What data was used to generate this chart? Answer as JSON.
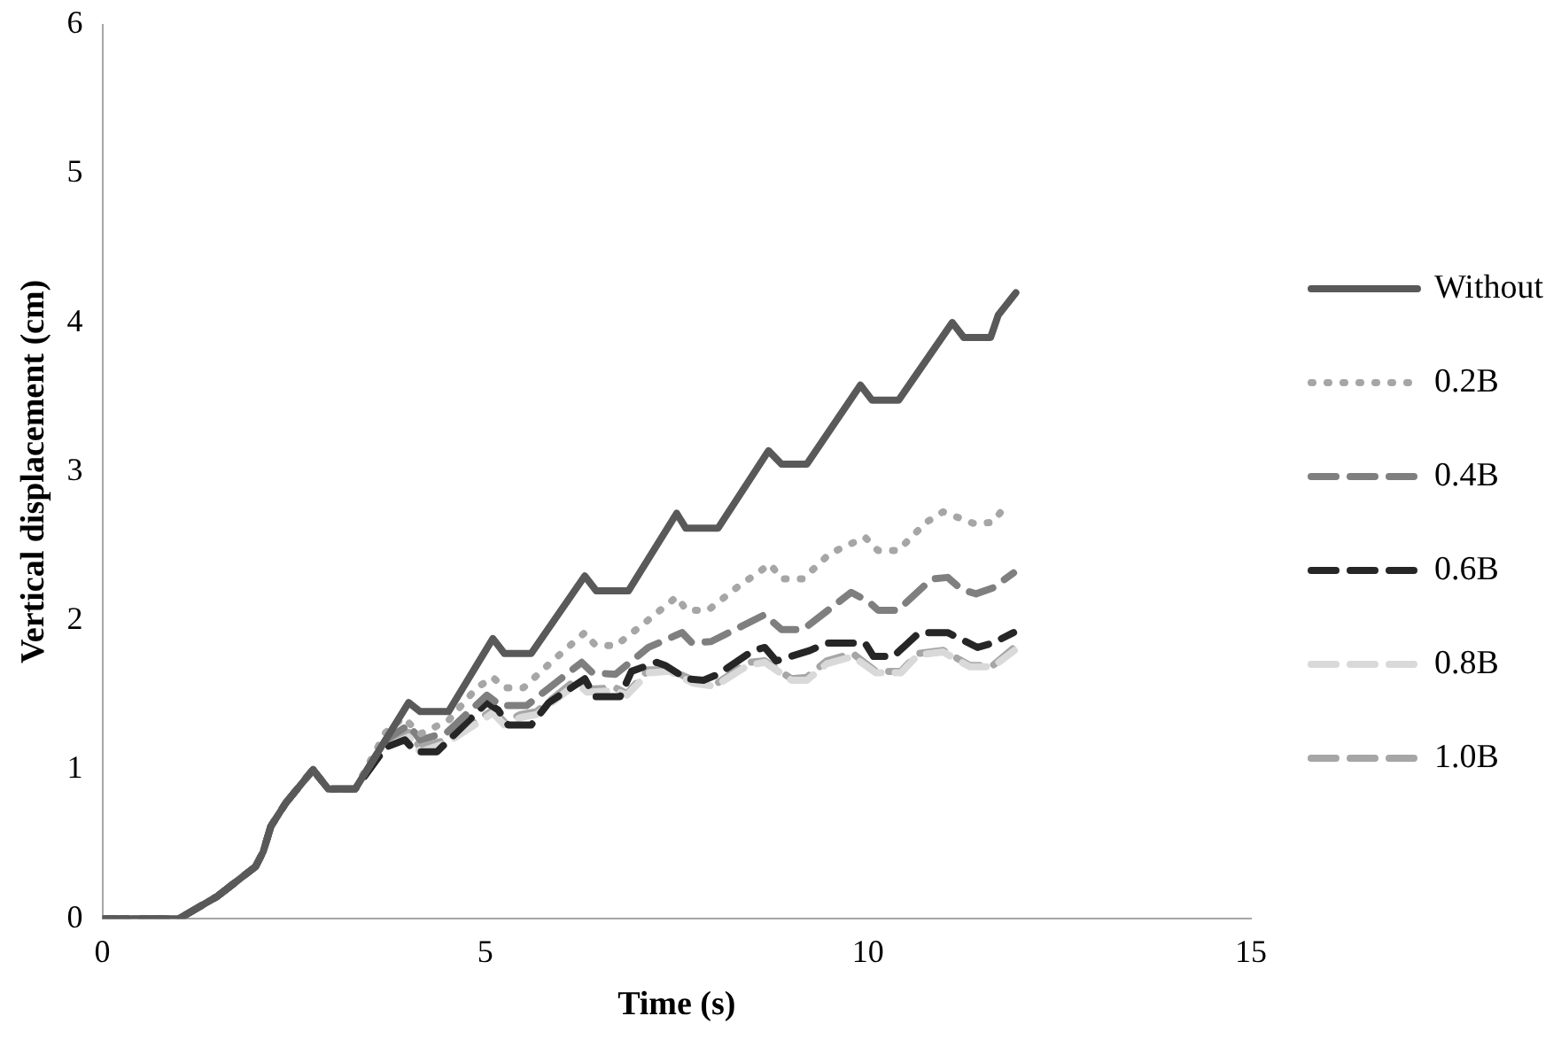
{
  "chart_data": {
    "type": "line",
    "xlabel": "Time (s)",
    "ylabel": "Vertical displacement (cm)",
    "xlim": [
      0,
      15
    ],
    "xticks": [
      0,
      5,
      10,
      15
    ],
    "ylim": [
      0,
      6
    ],
    "yticks": [
      0,
      1,
      2,
      3,
      4,
      5,
      6
    ],
    "grid": false,
    "legend": "right",
    "marker": "none",
    "series": [
      {
        "name": "Without",
        "color": "#595959",
        "line_style": "solid",
        "x": [
          0,
          1,
          1.5,
          2,
          2.1,
          2.2,
          2.4,
          2.75,
          2.95,
          3.3,
          4.0,
          4.15,
          4.52,
          5.1,
          5.25,
          5.6,
          6.3,
          6.45,
          6.87,
          7.5,
          7.62,
          8.04,
          8.7,
          8.87,
          9.2,
          9.9,
          10.05,
          10.4,
          11.1,
          11.25,
          11.6,
          11.7,
          11.93
        ],
        "values": [
          0,
          0,
          0.15,
          0.35,
          0.45,
          0.62,
          0.78,
          1.0,
          0.87,
          0.87,
          1.45,
          1.39,
          1.39,
          1.88,
          1.78,
          1.78,
          2.3,
          2.2,
          2.2,
          2.72,
          2.62,
          2.62,
          3.14,
          3.05,
          3.05,
          3.58,
          3.48,
          3.48,
          4.0,
          3.9,
          3.9,
          4.05,
          4.2
        ]
      },
      {
        "name": "0.2B",
        "color": "#a6a6a6",
        "line_style": "dotted",
        "x": [
          0,
          1,
          1.5,
          2,
          2.1,
          2.2,
          2.4,
          2.75,
          2.95,
          3.3,
          3.7,
          3.93,
          4.15,
          4.52,
          4.89,
          5.1,
          5.24,
          5.5,
          5.9,
          6.3,
          6.43,
          6.7,
          7.07,
          7.5,
          7.63,
          7.91,
          8.28,
          8.72,
          8.87,
          9.15,
          9.5,
          9.96,
          10.13,
          10.39,
          10.76,
          10.98,
          11.39,
          11.63,
          11.78
        ],
        "values": [
          0,
          0,
          0.15,
          0.35,
          0.45,
          0.62,
          0.78,
          1.0,
          0.87,
          0.87,
          1.25,
          1.35,
          1.24,
          1.33,
          1.55,
          1.62,
          1.55,
          1.55,
          1.74,
          1.92,
          1.84,
          1.83,
          1.98,
          2.16,
          2.07,
          2.07,
          2.22,
          2.38,
          2.28,
          2.28,
          2.45,
          2.56,
          2.47,
          2.47,
          2.66,
          2.73,
          2.65,
          2.66,
          2.76
        ]
      },
      {
        "name": "0.4B",
        "color": "#7f7f7f",
        "line_style": "dashed",
        "x": [
          0,
          1,
          1.5,
          2,
          2.1,
          2.2,
          2.4,
          2.75,
          2.95,
          3.3,
          3.7,
          4.0,
          4.15,
          4.5,
          5.02,
          5.2,
          5.54,
          6.26,
          6.4,
          6.7,
          7.13,
          7.57,
          7.7,
          7.95,
          8.65,
          8.87,
          9.15,
          9.78,
          10.0,
          10.13,
          10.39,
          10.83,
          11.04,
          11.22,
          11.41,
          11.63,
          11.9
        ],
        "values": [
          0,
          0,
          0.15,
          0.35,
          0.45,
          0.62,
          0.78,
          1.0,
          0.87,
          0.87,
          1.2,
          1.3,
          1.2,
          1.25,
          1.5,
          1.43,
          1.43,
          1.72,
          1.65,
          1.64,
          1.82,
          1.92,
          1.85,
          1.86,
          2.04,
          1.94,
          1.94,
          2.19,
          2.13,
          2.07,
          2.07,
          2.28,
          2.29,
          2.21,
          2.18,
          2.22,
          2.32
        ]
      },
      {
        "name": "0.6B",
        "color": "#262626",
        "line_style": "dashed",
        "x": [
          0,
          1,
          1.5,
          2,
          2.1,
          2.2,
          2.4,
          2.75,
          2.95,
          3.3,
          3.7,
          3.95,
          4.09,
          4.37,
          5.02,
          5.17,
          5.3,
          5.6,
          5.83,
          6.3,
          6.43,
          6.76,
          6.91,
          7.24,
          7.35,
          7.63,
          7.85,
          8.04,
          8.5,
          8.65,
          8.8,
          9.24,
          9.46,
          9.96,
          10.07,
          10.33,
          10.67,
          11.04,
          11.43,
          11.63,
          11.9
        ],
        "values": [
          0,
          0,
          0.15,
          0.35,
          0.45,
          0.62,
          0.78,
          1.0,
          0.87,
          0.87,
          1.15,
          1.2,
          1.12,
          1.12,
          1.45,
          1.4,
          1.3,
          1.3,
          1.45,
          1.61,
          1.49,
          1.49,
          1.66,
          1.72,
          1.7,
          1.61,
          1.6,
          1.64,
          1.8,
          1.82,
          1.73,
          1.8,
          1.85,
          1.85,
          1.76,
          1.76,
          1.92,
          1.92,
          1.82,
          1.85,
          1.92
        ]
      },
      {
        "name": "0.8B",
        "color": "#d9d9d9",
        "line_style": "dashed",
        "x": [
          0,
          1,
          1.5,
          2,
          2.1,
          2.2,
          2.4,
          2.75,
          2.95,
          3.3,
          3.7,
          4.0,
          4.15,
          4.5,
          5.1,
          5.25,
          5.46,
          5.67,
          6.2,
          6.33,
          6.7,
          6.85,
          7.13,
          7.41,
          7.72,
          8.0,
          8.43,
          8.65,
          9.0,
          9.2,
          9.46,
          9.8,
          10.1,
          10.43,
          10.65,
          10.98,
          11.33,
          11.63,
          11.91
        ],
        "values": [
          0,
          0,
          0.15,
          0.35,
          0.45,
          0.62,
          0.78,
          1.0,
          0.87,
          0.87,
          1.15,
          1.22,
          1.12,
          1.18,
          1.38,
          1.3,
          1.35,
          1.37,
          1.58,
          1.52,
          1.53,
          1.5,
          1.65,
          1.66,
          1.58,
          1.56,
          1.7,
          1.72,
          1.6,
          1.6,
          1.71,
          1.76,
          1.65,
          1.65,
          1.77,
          1.79,
          1.69,
          1.69,
          1.8
        ]
      },
      {
        "name": "1.0B",
        "color": "#a6a6a6",
        "line_style": "dashed",
        "x": [
          0,
          1,
          1.5,
          2,
          2.1,
          2.2,
          2.4,
          2.75,
          2.95,
          3.3,
          3.7,
          4.0,
          4.15,
          4.5,
          5.1,
          5.25,
          5.46,
          5.67,
          6.2,
          6.33,
          6.7,
          6.85,
          7.13,
          7.41,
          7.72,
          8.0,
          8.43,
          8.65,
          9.0,
          9.2,
          9.46,
          9.8,
          10.1,
          10.43,
          10.65,
          10.98,
          11.33,
          11.63,
          11.91
        ],
        "values": [
          0,
          0,
          0.15,
          0.35,
          0.45,
          0.62,
          0.78,
          1.0,
          0.87,
          0.87,
          1.15,
          1.25,
          1.15,
          1.2,
          1.4,
          1.32,
          1.37,
          1.39,
          1.61,
          1.54,
          1.55,
          1.51,
          1.67,
          1.67,
          1.6,
          1.57,
          1.72,
          1.73,
          1.61,
          1.62,
          1.73,
          1.78,
          1.66,
          1.66,
          1.78,
          1.8,
          1.7,
          1.7,
          1.82
        ]
      }
    ]
  }
}
